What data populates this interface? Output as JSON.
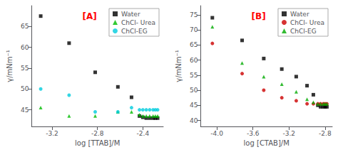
{
  "chart_data": [
    {
      "type": "scatter",
      "title": "[A]",
      "xlabel": "log [TTAB]/M",
      "ylabel": "γ/mNm⁻¹",
      "xlim": [
        -3.38,
        -2.22
      ],
      "ylim": [
        41,
        70
      ],
      "xticks": [
        -3.2,
        -2.8,
        -2.4
      ],
      "yticks": [
        45,
        50,
        55,
        60,
        65
      ],
      "grid": false,
      "legend": "upper right",
      "series": [
        {
          "name": "Water",
          "color": "#000000",
          "marker": "square",
          "x": [
            -3.3,
            -3.05,
            -2.82,
            -2.62,
            -2.5,
            -2.43,
            -2.4,
            -2.37,
            -2.34,
            -2.31,
            -2.29,
            -2.27
          ],
          "values": [
            67.5,
            61.0,
            54.0,
            50.5,
            48.0,
            43.5,
            43.2,
            43.0,
            43.0,
            43.0,
            43.0,
            43.0
          ]
        },
        {
          "name": "ChCl- Urea",
          "color": "#00bb00",
          "marker": "triangle",
          "x": [
            -3.3,
            -3.05,
            -2.82,
            -2.62,
            -2.5,
            -2.43,
            -2.4,
            -2.37,
            -2.34,
            -2.31,
            -2.29,
            -2.27
          ],
          "values": [
            45.5,
            43.5,
            43.5,
            44.5,
            44.5,
            43.8,
            43.5,
            43.5,
            43.5,
            43.5,
            43.5,
            43.5
          ]
        },
        {
          "name": "ChCl-EG",
          "color": "#00ccdd",
          "marker": "circle",
          "x": [
            -3.3,
            -3.05,
            -2.82,
            -2.62,
            -2.5,
            -2.43,
            -2.4,
            -2.37,
            -2.34,
            -2.31,
            -2.29,
            -2.27
          ],
          "values": [
            50.0,
            48.5,
            44.5,
            44.5,
            45.5,
            45.0,
            45.0,
            45.0,
            45.0,
            45.0,
            45.0,
            45.0
          ]
        }
      ]
    },
    {
      "type": "scatter",
      "title": "[B]",
      "xlabel": "log [CTAB]/M",
      "ylabel": "γ/mNm⁻¹",
      "xlim": [
        -4.18,
        -2.72
      ],
      "ylim": [
        38,
        78
      ],
      "xticks": [
        {
          "value": -4.0,
          "label": "-4.0"
        },
        -3.6,
        -3.2,
        -2.8
      ],
      "yticks": [
        40,
        45,
        50,
        55,
        60,
        65,
        70,
        75
      ],
      "grid": false,
      "legend": "upper right",
      "series": [
        {
          "name": "Water",
          "color": "#000000",
          "marker": "square",
          "x": [
            -4.05,
            -3.72,
            -3.48,
            -3.28,
            -3.12,
            -3.0,
            -2.93,
            -2.88,
            -2.85,
            -2.82,
            -2.8,
            -2.78
          ],
          "values": [
            74.0,
            66.5,
            60.5,
            57.0,
            54.5,
            51.5,
            48.5,
            45.0,
            44.5,
            44.5,
            44.5,
            44.5
          ]
        },
        {
          "name": "ChCl- Urea",
          "color": "#cc0000",
          "marker": "circle",
          "x": [
            -4.05,
            -3.72,
            -3.48,
            -3.28,
            -3.12,
            -3.0,
            -2.93,
            -2.88,
            -2.85,
            -2.82,
            -2.8,
            -2.78
          ],
          "values": [
            65.5,
            55.5,
            50.0,
            47.5,
            46.5,
            45.5,
            45.5,
            45.5,
            45.5,
            45.5,
            45.5,
            45.5
          ]
        },
        {
          "name": "ChCl-EG",
          "color": "#00aa00",
          "marker": "triangle",
          "x": [
            -4.05,
            -3.72,
            -3.48,
            -3.28,
            -3.12,
            -3.0,
            -2.93,
            -2.88,
            -2.85,
            -2.82,
            -2.8,
            -2.78
          ],
          "values": [
            71.0,
            59.0,
            54.5,
            52.0,
            49.5,
            47.0,
            46.0,
            45.5,
            45.5,
            45.5,
            45.5,
            45.5
          ]
        }
      ]
    }
  ]
}
